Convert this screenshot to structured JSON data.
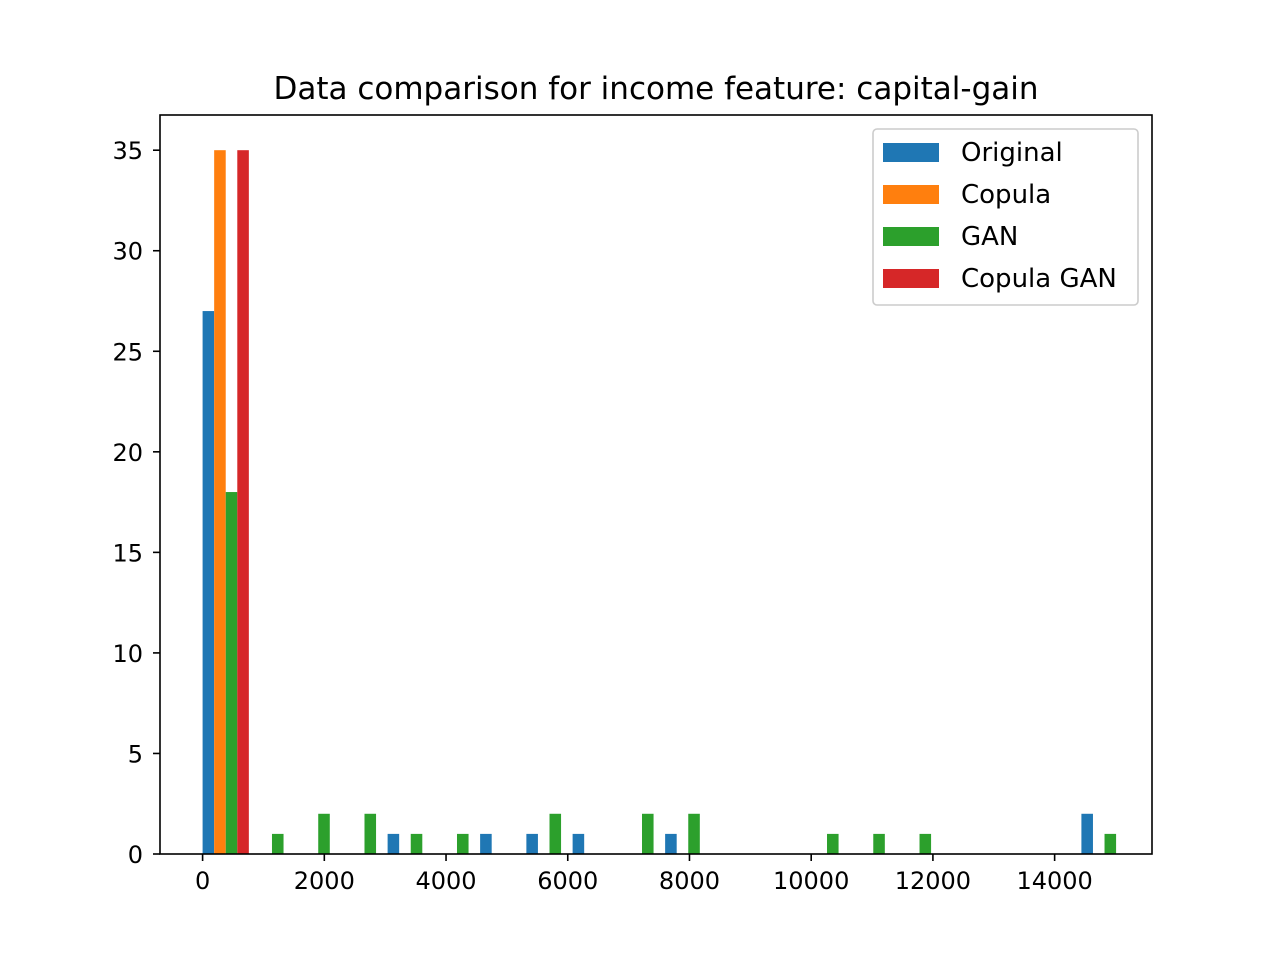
{
  "chart_data": {
    "type": "bar",
    "title": "Data comparison for income feature: capital-gain",
    "xlabel": "",
    "ylabel": "",
    "xlim": [
      -700,
      15600
    ],
    "ylim": [
      0,
      36.75
    ],
    "xticks": [
      0,
      2000,
      4000,
      6000,
      8000,
      10000,
      12000,
      14000
    ],
    "xtick_labels": [
      "0",
      "2000",
      "4000",
      "6000",
      "8000",
      "10000",
      "12000",
      "14000"
    ],
    "yticks": [
      0,
      5,
      10,
      15,
      20,
      25,
      30,
      35
    ],
    "ytick_labels": [
      "0",
      "5",
      "10",
      "15",
      "20",
      "25",
      "30",
      "35"
    ],
    "grid": false,
    "legend_position": "top-right",
    "bin_start": 0,
    "bin_width": 760,
    "series": [
      {
        "name": "Original",
        "color": "#1f77b4",
        "values": [
          27,
          0,
          0,
          0,
          1,
          0,
          1,
          1,
          1,
          0,
          1,
          0,
          0,
          0,
          0,
          0,
          0,
          0,
          0,
          2
        ]
      },
      {
        "name": "Copula",
        "color": "#ff7f0e",
        "values": [
          35,
          0,
          0,
          0,
          0,
          0,
          0,
          0,
          0,
          0,
          0,
          0,
          0,
          0,
          0,
          0,
          0,
          0,
          0,
          0
        ]
      },
      {
        "name": "GAN",
        "color": "#2ca02c",
        "values": [
          18,
          1,
          2,
          2,
          1,
          1,
          0,
          2,
          0,
          2,
          2,
          0,
          0,
          1,
          1,
          1,
          0,
          0,
          0,
          1
        ]
      },
      {
        "name": "Copula GAN",
        "color": "#d62728",
        "values": [
          35,
          0,
          0,
          0,
          0,
          0,
          0,
          0,
          0,
          0,
          0,
          0,
          0,
          0,
          0,
          0,
          0,
          0,
          0,
          0
        ]
      }
    ]
  }
}
